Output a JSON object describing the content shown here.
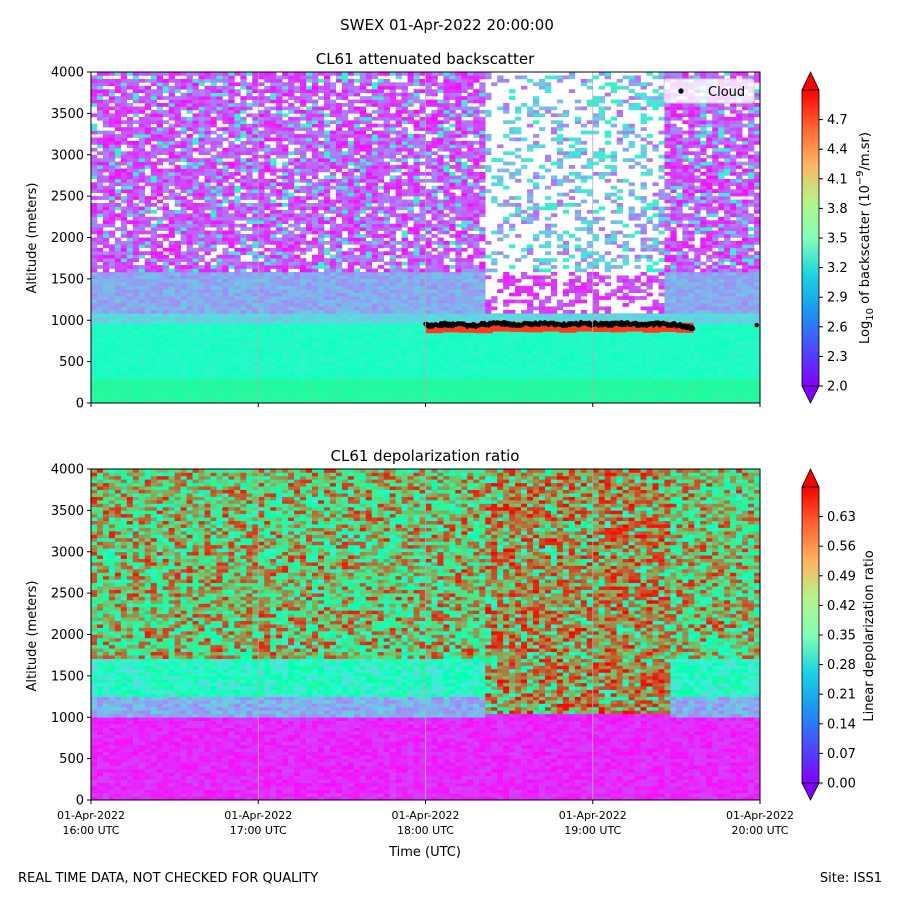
{
  "figure": {
    "suptitle": "SWEX 01-Apr-2022 20:00:00",
    "footer_left": "REAL TIME DATA, NOT CHECKED FOR QUALITY",
    "footer_right": "Site: ISS1"
  },
  "chart_data": [
    {
      "type": "heatmap",
      "title": "CL61 attenuated backscatter",
      "ylabel": "Altitude (meters)",
      "xlabel": "",
      "ylim": [
        0,
        4000
      ],
      "yticks": [
        0,
        500,
        1000,
        1500,
        2000,
        2500,
        3000,
        3500,
        4000
      ],
      "xlim_hours_utc": [
        16,
        20
      ],
      "xticks_hours_utc": [
        16,
        17,
        18,
        19,
        20
      ],
      "xtick_labels_visible": false,
      "colorbar": {
        "label_main": "Log",
        "label_sub": "10",
        "label_rest": " of backscatter (10",
        "label_sup": "−9",
        "label_end": "/m.sr)",
        "range": [
          2.0,
          5.0
        ],
        "ticks": [
          "2.0",
          "2.3",
          "2.6",
          "2.9",
          "3.2",
          "3.5",
          "3.8",
          "4.1",
          "4.4",
          "4.7"
        ],
        "colormap": "rainbow",
        "extend": "both"
      },
      "legend": {
        "label": "Cloud",
        "position": "top-right",
        "marker_color": "#000000"
      },
      "layers_description": [
        {
          "from_altitude": 0,
          "to_altitude": 300,
          "value": 3.7
        },
        {
          "from_altitude": 300,
          "to_altitude": 950,
          "value": 3.3
        },
        {
          "from_altitude": 950,
          "to_altitude": 1500,
          "value": 2.8
        },
        {
          "from_altitude": 1500,
          "to_altitude": 4000,
          "value": 2.3
        }
      ],
      "clear_gap_hours_utc": [
        18.37,
        19.43
      ],
      "cloud_base_series": {
        "hours_utc": [
          18.0,
          18.1,
          18.2,
          18.3,
          18.4,
          18.5,
          18.6,
          18.7,
          18.8,
          18.9,
          19.0,
          19.1,
          19.2,
          19.3,
          19.4,
          19.5,
          19.6,
          19.98
        ],
        "altitude_m": [
          940,
          950,
          945,
          940,
          960,
          955,
          950,
          960,
          945,
          960,
          955,
          950,
          960,
          945,
          955,
          945,
          900,
          940
        ]
      }
    },
    {
      "type": "heatmap",
      "title": "CL61 depolarization ratio",
      "ylabel": "Altitude (meters)",
      "xlabel": "Time (UTC)",
      "ylim": [
        0,
        4000
      ],
      "yticks": [
        0,
        500,
        1000,
        1500,
        2000,
        2500,
        3000,
        3500,
        4000
      ],
      "xlim_hours_utc": [
        16,
        20
      ],
      "xticks_hours_utc": [
        16,
        17,
        18,
        19,
        20
      ],
      "xtick_labels": [
        {
          "line1": "01-Apr-2022",
          "line2": "16:00 UTC"
        },
        {
          "line1": "01-Apr-2022",
          "line2": "17:00 UTC"
        },
        {
          "line1": "01-Apr-2022",
          "line2": "18:00 UTC"
        },
        {
          "line1": "01-Apr-2022",
          "line2": "19:00 UTC"
        },
        {
          "line1": "01-Apr-2022",
          "line2": "20:00 UTC"
        }
      ],
      "colorbar": {
        "label": "Linear depolarization ratio",
        "range": [
          0.0,
          0.7
        ],
        "ticks": [
          "0.00",
          "0.07",
          "0.14",
          "0.21",
          "0.28",
          "0.35",
          "0.42",
          "0.49",
          "0.56",
          "0.63"
        ],
        "colormap": "rainbow",
        "extend": "both"
      },
      "layers_description": [
        {
          "from_altitude": 0,
          "to_altitude": 1000,
          "value": 0.03
        },
        {
          "from_altitude": 1000,
          "to_altitude": 1700,
          "value": 0.22
        },
        {
          "from_altitude": 1700,
          "to_altitude": 4000,
          "value": 0.5
        }
      ],
      "high_depol_gap_hours_utc": [
        18.37,
        19.45
      ]
    }
  ]
}
